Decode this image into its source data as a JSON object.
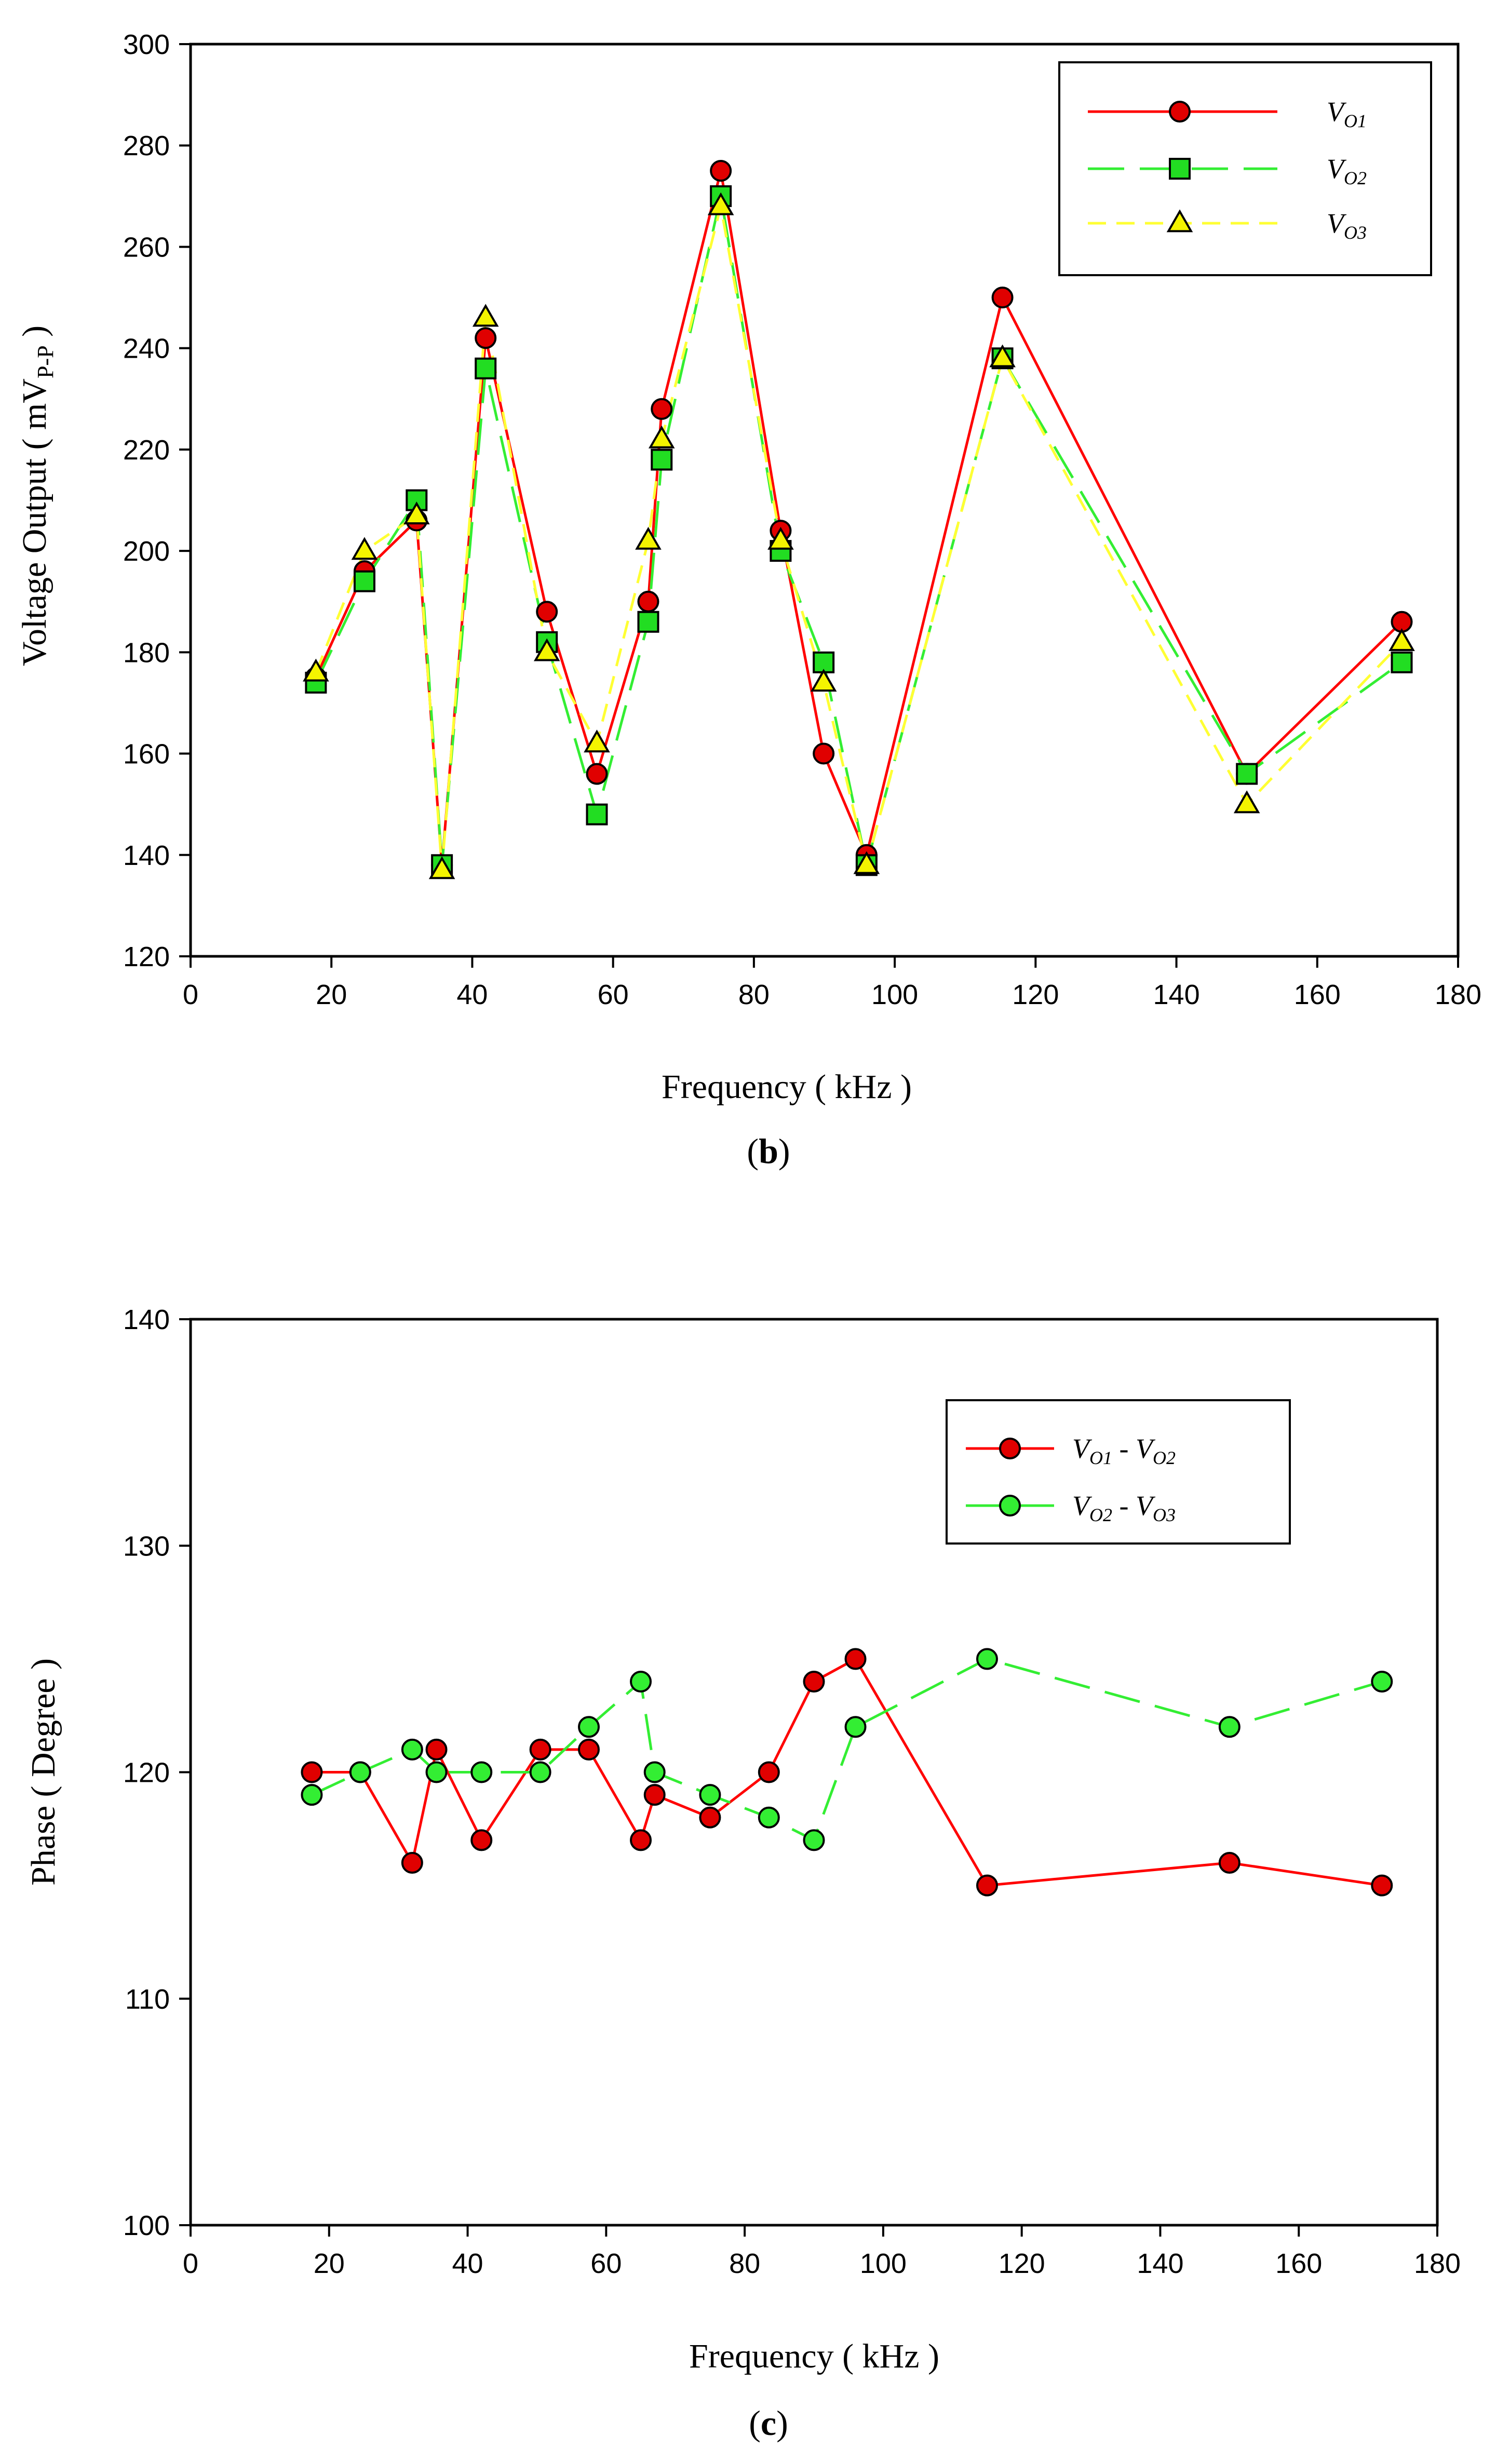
{
  "chart_data": [
    {
      "id": "b",
      "type": "line",
      "caption": "b",
      "xlabel": "Frequency ( kHz )",
      "ylabel": "Voltage Output  ( mV",
      "ylabel_sub": "P-P",
      "ylabel_close": " )",
      "xlim": [
        0,
        180
      ],
      "ylim": [
        120,
        300
      ],
      "xticks": [
        0,
        20,
        40,
        60,
        80,
        100,
        120,
        140,
        160,
        180
      ],
      "yticks": [
        120,
        140,
        160,
        180,
        200,
        220,
        240,
        260,
        280,
        300
      ],
      "legend_position": "top-right",
      "x": [
        17.8,
        24.7,
        32.1,
        35.7,
        41.9,
        50.6,
        57.7,
        65.0,
        66.9,
        75.3,
        83.8,
        89.9,
        96.0,
        115.3,
        150.0,
        172.0
      ],
      "series": [
        {
          "name": "V",
          "sub": "O1",
          "color": "#ff0000",
          "dash": "",
          "marker": "circle",
          "marker_fill": "#e00000",
          "values": [
            175,
            196,
            206,
            138,
            242,
            188,
            156,
            190,
            228,
            275,
            204,
            160,
            140,
            250,
            156,
            186
          ]
        },
        {
          "name": "V",
          "sub": "O2",
          "color": "#33ee33",
          "dash": "70 30",
          "marker": "square",
          "marker_fill": "#22dd22",
          "values": [
            174,
            194,
            210,
            138,
            236,
            182,
            148,
            186,
            218,
            270,
            200,
            178,
            138,
            238,
            156,
            178
          ]
        },
        {
          "name": "V",
          "sub": "O3",
          "color": "#ffff33",
          "dash": "35 20",
          "marker": "triangle",
          "marker_fill": "#f4f400",
          "values": [
            176,
            200,
            207,
            137,
            246,
            180,
            162,
            202,
            222,
            268,
            202,
            174,
            138,
            238,
            150,
            182
          ]
        }
      ]
    },
    {
      "id": "c",
      "type": "line",
      "caption": "c",
      "xlabel": "Frequency ( kHz )",
      "ylabel": "Phase ( Degree )",
      "xlim": [
        0,
        180
      ],
      "ylim": [
        100,
        140
      ],
      "xticks": [
        0,
        20,
        40,
        60,
        80,
        100,
        120,
        140,
        160,
        180
      ],
      "yticks": [
        100,
        110,
        120,
        130,
        140
      ],
      "legend_position": "top-right",
      "series": [
        {
          "name": "V",
          "sub": "O1",
          "name2": "V",
          "sub2": "O2",
          "color": "#ff0000",
          "dash": "",
          "marker": "circle",
          "marker_fill": "#e00000",
          "x": [
            17.5,
            24.5,
            32.0,
            35.5,
            42.0,
            50.5,
            57.5,
            65.0,
            67.0,
            75.0,
            83.5,
            90.0,
            96.0,
            115.0,
            150.0,
            172.0
          ],
          "values": [
            120,
            120,
            116,
            121,
            117,
            121,
            121,
            117,
            119,
            118,
            120,
            124,
            125,
            115,
            116,
            115
          ]
        },
        {
          "name": "V",
          "sub": "O2",
          "name2": "V",
          "sub2": "O3",
          "color": "#33ee33",
          "dash": "70 30",
          "marker": "circle",
          "marker_fill": "#33ee33",
          "x": [
            17.5,
            24.5,
            32.0,
            35.5,
            42.0,
            50.5,
            57.5,
            65.0,
            67.0,
            75.0,
            83.5,
            90.0,
            96.0,
            115.0,
            150.0,
            172.0
          ],
          "values": [
            119,
            120,
            121,
            120,
            120,
            120,
            122,
            124,
            120,
            119,
            118,
            117,
            122,
            125,
            122,
            124
          ]
        }
      ]
    }
  ]
}
